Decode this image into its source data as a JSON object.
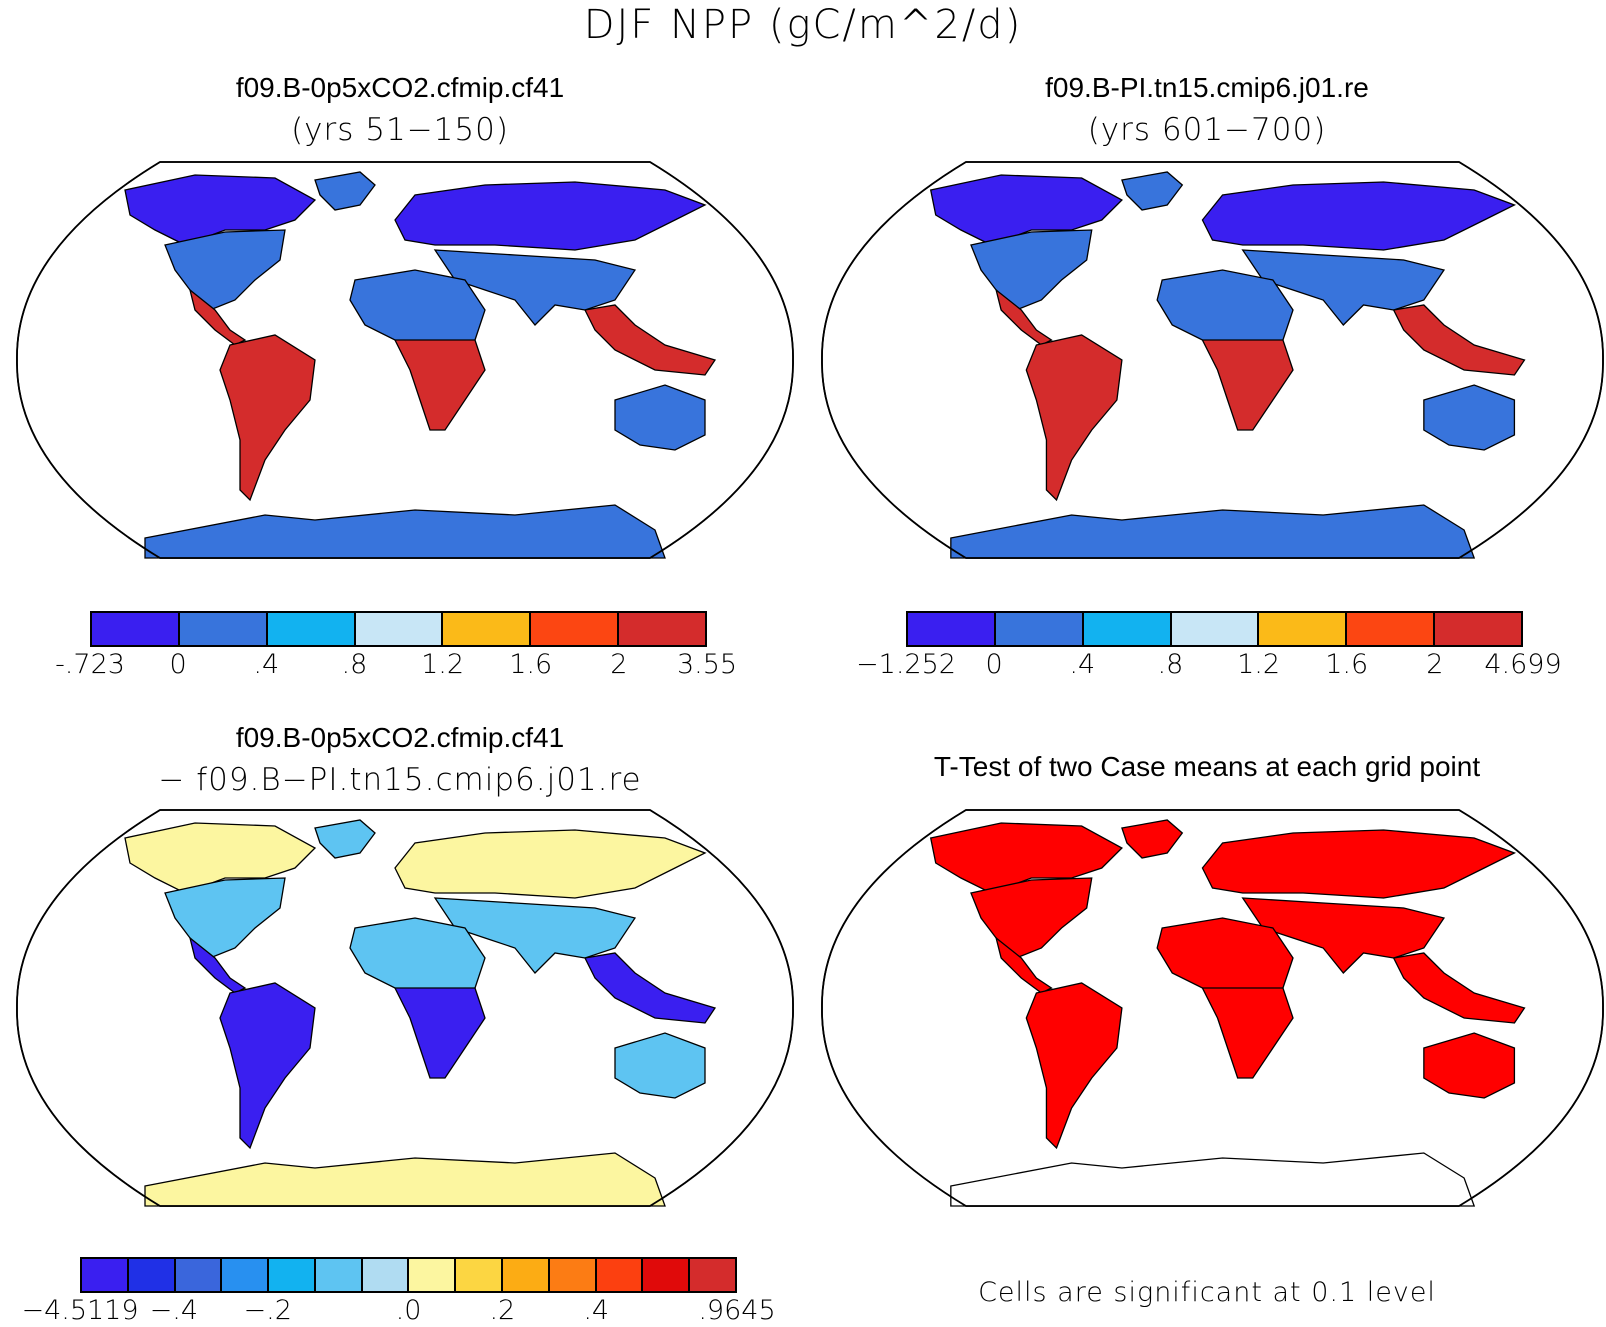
{
  "figure_title": "DJF NPP (gC/m^2/d)",
  "panels": [
    {
      "id": "case1",
      "title": "f09.B-0p5xCO2.cfmip.cf41",
      "subtitle": "(yrs 51−150)",
      "colorbar": {
        "colors": [
          "#3a1ff0",
          "#3874dc",
          "#12b2f0",
          "#c8e6f6",
          "#fbba18",
          "#fc4612",
          "#d42c2c"
        ],
        "labels": [
          "-.723",
          "0",
          ".4",
          ".8",
          "1.2",
          "1.6",
          "2",
          "3.55"
        ]
      },
      "land_colors": {
        "north": "#3a1ff0",
        "mid": "#3874dc",
        "tropics": "#d42c2c",
        "antarctica": "#3874dc"
      }
    },
    {
      "id": "case2",
      "title": "f09.B-PI.tn15.cmip6.j01.re",
      "subtitle": "(yrs 601−700)",
      "colorbar": {
        "colors": [
          "#3a1ff0",
          "#3874dc",
          "#12b2f0",
          "#c8e6f6",
          "#fbba18",
          "#fc4612",
          "#d42c2c"
        ],
        "labels": [
          "−1.252",
          "0",
          ".4",
          ".8",
          "1.2",
          "1.6",
          "2",
          "4.699"
        ]
      },
      "land_colors": {
        "north": "#3a1ff0",
        "mid": "#3874dc",
        "tropics": "#d42c2c",
        "antarctica": "#3874dc"
      }
    },
    {
      "id": "difference",
      "title": "f09.B-0p5xCO2.cfmip.cf41",
      "subtitle": "− f09.B−PI.tn15.cmip6.j01.re",
      "colorbar": {
        "colors": [
          "#3a1ff0",
          "#2030e6",
          "#3a66dc",
          "#2890f0",
          "#12b2f0",
          "#5ec4f2",
          "#b0dcf2",
          "#fcf6a0",
          "#fcd642",
          "#fcac14",
          "#fc7c14",
          "#fc4010",
          "#e00a0a",
          "#d42c2c"
        ],
        "labels": [
          "−4.5119",
          "−.4",
          "−.2",
          ".0",
          ".2",
          ".4",
          ".9645"
        ]
      },
      "land_colors": {
        "north": "#fcf6a0",
        "mid": "#5ec4f2",
        "tropics": "#3a1ff0",
        "antarctica": "#fcf6a0"
      }
    },
    {
      "id": "ttest",
      "title": "T-Test of two Case means at each grid point",
      "subtitle": "",
      "note": "Cells are significant at 0.1 level",
      "land_colors": {
        "north": "#ff0000",
        "mid": "#ff0000",
        "tropics": "#ff0000",
        "antarctica": "#ffffff"
      }
    }
  ]
}
